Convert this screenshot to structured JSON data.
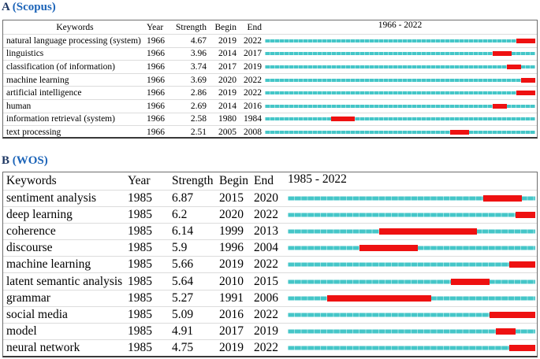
{
  "colors": {
    "track_cyan": "#45c6c8",
    "burst_red": "#ee1111",
    "source_blue": "#1c64b8",
    "panel_letter": "#1f3864",
    "box_border": "#6e6e6e",
    "box_border_bottom": "#383838",
    "row_divider": "#dcdcdc"
  },
  "chart_data": [
    {
      "type": "table",
      "panel_letter": "A",
      "source_label": "(Scopus)",
      "columns": [
        "Keywords",
        "Year",
        "Strength",
        "Begin",
        "End"
      ],
      "timeline": {
        "label": "1966 - 2022",
        "start": 1966,
        "end": 2022
      },
      "rows": [
        {
          "keyword": "natural language processing (system)",
          "year": 1966,
          "strength": "4.67",
          "begin": 2019,
          "end": 2022
        },
        {
          "keyword": "linguistics",
          "year": 1966,
          "strength": "3.96",
          "begin": 2014,
          "end": 2017
        },
        {
          "keyword": "classification (of information)",
          "year": 1966,
          "strength": "3.74",
          "begin": 2017,
          "end": 2019
        },
        {
          "keyword": "machine learning",
          "year": 1966,
          "strength": "3.69",
          "begin": 2020,
          "end": 2022
        },
        {
          "keyword": "artificial intelligence",
          "year": 1966,
          "strength": "2.86",
          "begin": 2019,
          "end": 2022
        },
        {
          "keyword": "human",
          "year": 1966,
          "strength": "2.69",
          "begin": 2014,
          "end": 2016
        },
        {
          "keyword": "information retrieval (system)",
          "year": 1966,
          "strength": "2.58",
          "begin": 1980,
          "end": 1984
        },
        {
          "keyword": "text processing",
          "year": 1966,
          "strength": "2.51",
          "begin": 2005,
          "end": 2008
        }
      ]
    },
    {
      "type": "table",
      "panel_letter": "B",
      "source_label": "(WOS)",
      "columns": [
        "Keywords",
        "Year",
        "Strength",
        "Begin",
        "End"
      ],
      "timeline": {
        "label": "1985 - 2022",
        "start": 1985,
        "end": 2022
      },
      "rows": [
        {
          "keyword": "sentiment analysis",
          "year": 1985,
          "strength": "6.87",
          "begin": 2015,
          "end": 2020
        },
        {
          "keyword": "deep learning",
          "year": 1985,
          "strength": "6.2",
          "begin": 2020,
          "end": 2022
        },
        {
          "keyword": "coherence",
          "year": 1985,
          "strength": "6.14",
          "begin": 1999,
          "end": 2013
        },
        {
          "keyword": "discourse",
          "year": 1985,
          "strength": "5.9",
          "begin": 1996,
          "end": 2004
        },
        {
          "keyword": "machine learning",
          "year": 1985,
          "strength": "5.66",
          "begin": 2019,
          "end": 2022
        },
        {
          "keyword": "latent semantic analysis",
          "year": 1985,
          "strength": "5.64",
          "begin": 2010,
          "end": 2015
        },
        {
          "keyword": "grammar",
          "year": 1985,
          "strength": "5.27",
          "begin": 1991,
          "end": 2006
        },
        {
          "keyword": "social media",
          "year": 1985,
          "strength": "5.09",
          "begin": 2016,
          "end": 2022
        },
        {
          "keyword": "model",
          "year": 1985,
          "strength": "4.91",
          "begin": 2017,
          "end": 2019
        },
        {
          "keyword": "neural network",
          "year": 1985,
          "strength": "4.75",
          "begin": 2019,
          "end": 2022
        }
      ]
    }
  ]
}
